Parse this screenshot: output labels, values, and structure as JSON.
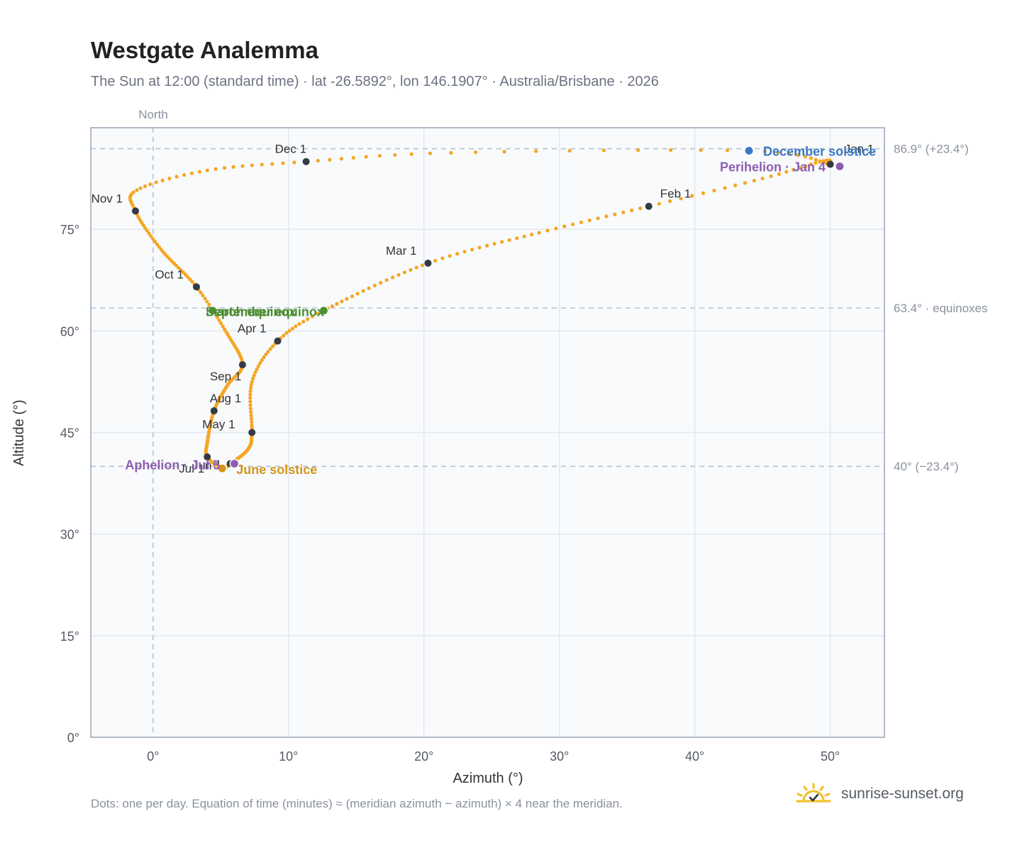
{
  "title": "Westgate Analemma",
  "subtitle": "The Sun at 12:00 (standard time) · lat -26.5892°, lon 146.1907° · Australia/Brisbane · 2026",
  "footnote": "Dots: one per day. Equation of time (minutes) ≈ (meridian azimuth − azimuth) × 4 near the meridian.",
  "brand": {
    "text": "sunrise-sunset.org",
    "icon": "sunrise-logo-icon"
  },
  "colors": {
    "path": "#f5a623",
    "month_marker": "#333a44",
    "equinox": "#4e8f35",
    "december_solstice": "#3a78c2",
    "june_solstice": "#d4961a",
    "apsis": "#8e5fb0",
    "grid": "#e3e7ee",
    "reference_line": "#b7c2d0",
    "plot_bg": "#f8fafc"
  },
  "chart_data": {
    "type": "scatter",
    "xlabel": "Azimuth (°)",
    "ylabel": "Altitude (°)",
    "xlim": [
      -4.6,
      54
    ],
    "ylim": [
      0,
      90
    ],
    "x_ticks": [
      0,
      10,
      20,
      30,
      40,
      50
    ],
    "x_tick_labels": [
      "0°",
      "10°",
      "20°",
      "30°",
      "40°",
      "50°"
    ],
    "y_ticks": [
      0,
      15,
      30,
      45,
      60,
      75
    ],
    "y_tick_labels": [
      "0°",
      "15°",
      "30°",
      "45°",
      "60°",
      "75°"
    ],
    "grid": true,
    "meridian": {
      "azimuth": 0,
      "label": "North"
    },
    "reference_lines": [
      {
        "altitude": 86.9,
        "label": "86.9° (+23.4°)"
      },
      {
        "altitude": 63.4,
        "label": "63.4° · equinoxes"
      },
      {
        "altitude": 40,
        "label": "40° (−23.4°)"
      }
    ],
    "month_markers": [
      {
        "label": "Jan 1",
        "az": 50.0,
        "alt": 84.6
      },
      {
        "label": "Feb 1",
        "az": 36.6,
        "alt": 78.4
      },
      {
        "label": "Mar 1",
        "az": 20.3,
        "alt": 70.0
      },
      {
        "label": "Apr 1",
        "az": 9.2,
        "alt": 58.5
      },
      {
        "label": "May 1",
        "az": 7.3,
        "alt": 45.0
      },
      {
        "label": "Jun 1",
        "az": 5.7,
        "alt": 40.4
      },
      {
        "label": "Jul 1",
        "az": 4.0,
        "alt": 41.4
      },
      {
        "label": "Aug 1",
        "az": 4.5,
        "alt": 48.2
      },
      {
        "label": "Sep 1",
        "az": 6.6,
        "alt": 55.0
      },
      {
        "label": "Oct 1",
        "az": 3.2,
        "alt": 66.5
      },
      {
        "label": "Nov 1",
        "az": -1.3,
        "alt": 77.7
      },
      {
        "label": "Dec 1",
        "az": 11.3,
        "alt": 85.0
      }
    ],
    "events": [
      {
        "label": "December solstice",
        "az": 44.0,
        "alt": 86.6,
        "color": "#3a78c2"
      },
      {
        "label": "Perihelion · Jan 4",
        "az": 50.7,
        "alt": 84.3,
        "color": "#8e5fb0"
      },
      {
        "label": "March equinox",
        "az": 12.6,
        "alt": 63.0,
        "color": "#4e8f35"
      },
      {
        "label": "September equinox",
        "az": 4.4,
        "alt": 63.0,
        "color": "#4e8f35"
      },
      {
        "label": "June solstice",
        "az": 5.1,
        "alt": 39.7,
        "color": "#d4961a"
      },
      {
        "label": "Aphelion · Jul 5",
        "az": 6.0,
        "alt": 40.4,
        "color": "#8e5fb0"
      }
    ],
    "path_knots": [
      {
        "doy": 1,
        "az": 50.0,
        "alt": 84.6
      },
      {
        "doy": 11,
        "az": 49.5,
        "alt": 85.1
      },
      {
        "doy": 21,
        "az": 45.0,
        "alt": 82.5
      },
      {
        "doy": 32,
        "az": 36.6,
        "alt": 78.4
      },
      {
        "doy": 45,
        "az": 28.5,
        "alt": 74.5
      },
      {
        "doy": 60,
        "az": 20.3,
        "alt": 70.0
      },
      {
        "doy": 79,
        "az": 12.6,
        "alt": 63.0
      },
      {
        "doy": 91,
        "az": 9.2,
        "alt": 58.5
      },
      {
        "doy": 105,
        "az": 7.3,
        "alt": 52.5
      },
      {
        "doy": 121,
        "az": 7.3,
        "alt": 45.0
      },
      {
        "doy": 136,
        "az": 7.0,
        "alt": 42.5
      },
      {
        "doy": 152,
        "az": 5.7,
        "alt": 40.4
      },
      {
        "doy": 172,
        "az": 5.1,
        "alt": 39.7
      },
      {
        "doy": 182,
        "az": 4.0,
        "alt": 41.4
      },
      {
        "doy": 197,
        "az": 4.0,
        "alt": 43.5
      },
      {
        "doy": 213,
        "az": 4.5,
        "alt": 48.2
      },
      {
        "doy": 228,
        "az": 5.5,
        "alt": 52.0
      },
      {
        "doy": 244,
        "az": 6.6,
        "alt": 55.0
      },
      {
        "doy": 258,
        "az": 5.5,
        "alt": 59.5
      },
      {
        "doy": 274,
        "az": 3.2,
        "alt": 66.5
      },
      {
        "doy": 290,
        "az": 0.6,
        "alt": 72.0
      },
      {
        "doy": 305,
        "az": -1.3,
        "alt": 77.7
      },
      {
        "doy": 314,
        "az": -1.2,
        "alt": 80.8
      },
      {
        "doy": 325,
        "az": 4.0,
        "alt": 83.7
      },
      {
        "doy": 335,
        "az": 11.3,
        "alt": 85.0
      },
      {
        "doy": 345,
        "az": 22.0,
        "alt": 86.3
      },
      {
        "doy": 355,
        "az": 44.0,
        "alt": 86.6
      },
      {
        "doy": 366,
        "az": 50.0,
        "alt": 84.6
      }
    ]
  }
}
